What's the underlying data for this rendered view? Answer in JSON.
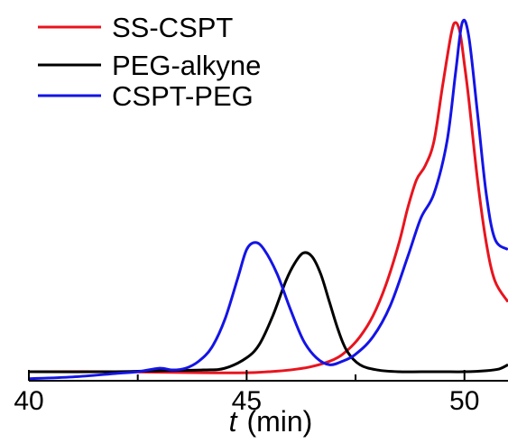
{
  "chart_data": {
    "type": "line",
    "title": "",
    "xlabel_var": "t",
    "xlabel_unit": "(min)",
    "ylabel": "",
    "xlim": [
      40,
      51.0
    ],
    "ylim": [
      0,
      1.0
    ],
    "xticks": [
      40,
      45,
      50
    ],
    "xtick_labels": [
      "40",
      "45",
      "50"
    ],
    "minor_xticks": [
      42.5,
      47.5
    ],
    "grid": false,
    "legend_placement": "top-left",
    "series": [
      {
        "name": "SS-CSPT",
        "color": "#e8141e",
        "x": [
          40,
          42,
          44,
          45,
          45.5,
          46,
          46.5,
          47,
          47.3,
          47.6,
          47.9,
          48.2,
          48.5,
          48.7,
          48.9,
          49.1,
          49.3,
          49.5,
          49.7,
          49.8,
          49.9,
          50.0,
          50.1,
          50.3,
          50.5,
          50.7,
          51.0
        ],
        "y": [
          0.0,
          0.0,
          -0.003,
          -0.003,
          0.0,
          0.005,
          0.015,
          0.035,
          0.06,
          0.1,
          0.16,
          0.25,
          0.37,
          0.47,
          0.55,
          0.59,
          0.66,
          0.82,
          0.97,
          1.0,
          0.97,
          0.88,
          0.78,
          0.55,
          0.37,
          0.26,
          0.2
        ]
      },
      {
        "name": "PEG-alkyne",
        "color": "#000000",
        "x": [
          40,
          42,
          43,
          44,
          44.5,
          45,
          45.3,
          45.6,
          45.9,
          46.1,
          46.3,
          46.5,
          46.7,
          46.9,
          47.1,
          47.3,
          47.6,
          48,
          48.5,
          49,
          49.5,
          50,
          50.5,
          50.8,
          51.0
        ],
        "y": [
          0.0,
          0.0,
          0.003,
          0.005,
          0.01,
          0.04,
          0.08,
          0.16,
          0.26,
          0.31,
          0.34,
          0.33,
          0.28,
          0.2,
          0.12,
          0.06,
          0.02,
          0.005,
          0.0,
          0.0,
          0.0,
          0.0,
          0.003,
          0.008,
          0.02
        ]
      },
      {
        "name": "CSPT-PEG",
        "color": "#1414e6",
        "x": [
          40,
          41,
          42,
          42.5,
          43,
          43.3,
          43.6,
          43.9,
          44.2,
          44.5,
          44.8,
          45.0,
          45.2,
          45.4,
          45.7,
          46.0,
          46.3,
          46.6,
          46.9,
          47.2,
          47.5,
          47.9,
          48.3,
          48.7,
          49.0,
          49.3,
          49.6,
          49.8,
          49.95,
          50.1,
          50.3,
          50.5,
          50.7,
          51.0
        ],
        "y": [
          -0.02,
          -0.015,
          -0.005,
          0.0,
          0.01,
          0.005,
          0.01,
          0.03,
          0.07,
          0.15,
          0.27,
          0.35,
          0.37,
          0.35,
          0.28,
          0.18,
          0.09,
          0.04,
          0.02,
          0.03,
          0.05,
          0.1,
          0.19,
          0.33,
          0.44,
          0.51,
          0.66,
          0.86,
          1.0,
          0.96,
          0.74,
          0.51,
          0.38,
          0.35
        ]
      }
    ]
  }
}
